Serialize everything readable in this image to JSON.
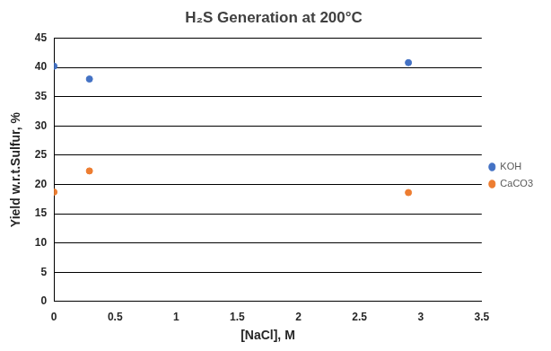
{
  "chart_data": {
    "type": "scatter",
    "title": "H₂S Generation at 200°C",
    "x_label": "[NaCl], M",
    "y_label": "Yield w.r.t.Sulfur, %",
    "series": [
      {
        "name": "KOH",
        "color": "#4472c4",
        "marker": "circle",
        "x": [
          0,
          0.29,
          2.9
        ],
        "values": [
          40.2,
          38.0,
          40.8
        ]
      },
      {
        "name": "CaCO3",
        "color": "#ed7d31",
        "marker": "circle",
        "x": [
          0,
          0.29,
          2.9
        ],
        "values": [
          18.7,
          22.3,
          18.6
        ]
      }
    ],
    "xlim": [
      0,
      3.5
    ],
    "xticks": [
      0,
      0.5,
      1,
      1.5,
      2,
      2.5,
      3,
      3.5
    ],
    "ylim": [
      0,
      45
    ],
    "yticks": [
      0,
      5,
      10,
      15,
      20,
      25,
      30,
      35,
      40,
      45
    ],
    "grid": true,
    "legend": "right"
  }
}
